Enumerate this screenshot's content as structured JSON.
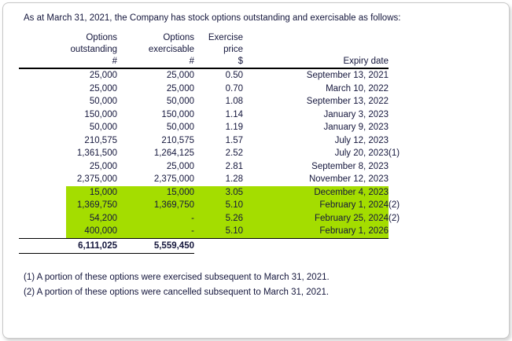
{
  "title": "As at March 31, 2021, the Company has stock options outstanding and exercisable as follows:",
  "colors": {
    "text": "#14163c",
    "highlight": "#a4dd00"
  },
  "table": {
    "columns": [
      {
        "line1": "Options",
        "line2": "outstanding",
        "unit": "#"
      },
      {
        "line1": "Options",
        "line2": "exercisable",
        "unit": "#"
      },
      {
        "line1": "Exercise",
        "line2": "price",
        "unit": "$"
      },
      {
        "line1": "",
        "line2": "Expiry date",
        "unit": ""
      }
    ],
    "rows": [
      {
        "outstanding": "25,000",
        "exercisable": "25,000",
        "price": "0.50",
        "expiry": "September 13, 2021",
        "note": "",
        "highlight": false
      },
      {
        "outstanding": "25,000",
        "exercisable": "25,000",
        "price": "0.70",
        "expiry": "March 10, 2022",
        "note": "",
        "highlight": false
      },
      {
        "outstanding": "50,000",
        "exercisable": "50,000",
        "price": "1.08",
        "expiry": "September 13, 2022",
        "note": "",
        "highlight": false
      },
      {
        "outstanding": "150,000",
        "exercisable": "150,000",
        "price": "1.14",
        "expiry": "January 3, 2023",
        "note": "",
        "highlight": false
      },
      {
        "outstanding": "50,000",
        "exercisable": "50,000",
        "price": "1.19",
        "expiry": "January 9, 2023",
        "note": "",
        "highlight": false
      },
      {
        "outstanding": "210,575",
        "exercisable": "210,575",
        "price": "1.57",
        "expiry": "July 12, 2023",
        "note": "",
        "highlight": false
      },
      {
        "outstanding": "1,361,500",
        "exercisable": "1,264,125",
        "price": "2.52",
        "expiry": "July 20, 2023",
        "note": "(1)",
        "highlight": false
      },
      {
        "outstanding": "25,000",
        "exercisable": "25,000",
        "price": "2.81",
        "expiry": "September 8, 2023",
        "note": "",
        "highlight": false
      },
      {
        "outstanding": "2,375,000",
        "exercisable": "2,375,000",
        "price": "1.28",
        "expiry": "November 12, 2023",
        "note": "",
        "highlight": false
      },
      {
        "outstanding": "15,000",
        "exercisable": "15,000",
        "price": "3.05",
        "expiry": "December 4, 2023",
        "note": "",
        "highlight": true
      },
      {
        "outstanding": "1,369,750",
        "exercisable": "1,369,750",
        "price": "5.10",
        "expiry": "February 1, 2024",
        "note": "(2)",
        "highlight": true
      },
      {
        "outstanding": "54,200",
        "exercisable": "-",
        "price": "5.26",
        "expiry": "February 25, 2024",
        "note": "(2)",
        "highlight": true
      },
      {
        "outstanding": "400,000",
        "exercisable": "-",
        "price": "5.10",
        "expiry": "February 1, 2026",
        "note": "",
        "highlight": true
      }
    ],
    "totals": {
      "outstanding": "6,111,025",
      "exercisable": "5,559,450"
    }
  },
  "footnotes": [
    "(1) A portion of these options were exercised subsequent to March 31, 2021.",
    "(2) A portion of these options were cancelled subsequent to March 31, 2021."
  ]
}
